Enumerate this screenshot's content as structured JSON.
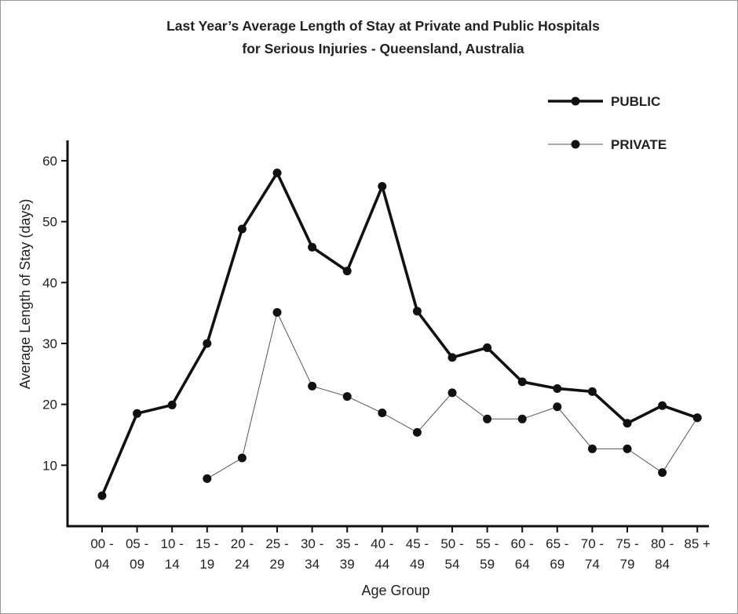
{
  "chart_data": {
    "type": "line",
    "title": "Last Year’s Average Length of Stay at Private and Public Hospitals",
    "subtitle": "for Serious Injuries - Queensland, Australia",
    "xlabel": "Age Group",
    "ylabel": "Average Length of Stay (days)",
    "ylim": [
      0,
      63
    ],
    "yticks": [
      10,
      20,
      30,
      40,
      50,
      60
    ],
    "grid": false,
    "legend_position": "top-right",
    "categories": [
      {
        "top": "00 -",
        "bottom": "04"
      },
      {
        "top": "05 -",
        "bottom": "09"
      },
      {
        "top": "10 -",
        "bottom": "14"
      },
      {
        "top": "15 -",
        "bottom": "19"
      },
      {
        "top": "20 -",
        "bottom": "24"
      },
      {
        "top": "25 -",
        "bottom": "29"
      },
      {
        "top": "30 -",
        "bottom": "34"
      },
      {
        "top": "35 -",
        "bottom": "39"
      },
      {
        "top": "40 -",
        "bottom": "44"
      },
      {
        "top": "45 -",
        "bottom": "49"
      },
      {
        "top": "50 -",
        "bottom": "54"
      },
      {
        "top": "55 -",
        "bottom": "59"
      },
      {
        "top": "60 -",
        "bottom": "64"
      },
      {
        "top": "65 -",
        "bottom": "69"
      },
      {
        "top": "70 -",
        "bottom": "74"
      },
      {
        "top": "75 -",
        "bottom": "79"
      },
      {
        "top": "80 -",
        "bottom": "84"
      },
      {
        "top": "85 +",
        "bottom": ""
      }
    ],
    "series": [
      {
        "name": "PUBLIC",
        "style": "thick",
        "color": "#111111",
        "values": [
          5,
          18.5,
          19.9,
          30,
          48.8,
          58,
          45.8,
          41.9,
          55.8,
          35.3,
          27.7,
          29.3,
          23.7,
          22.6,
          22.1,
          16.9,
          19.8,
          17.8
        ]
      },
      {
        "name": "PRIVATE",
        "style": "thin",
        "color": "#111111",
        "values": [
          null,
          null,
          null,
          7.8,
          11.2,
          35.1,
          23,
          21.3,
          18.6,
          15.4,
          21.9,
          17.6,
          17.6,
          19.6,
          12.7,
          12.7,
          8.8,
          17.8
        ]
      }
    ]
  }
}
